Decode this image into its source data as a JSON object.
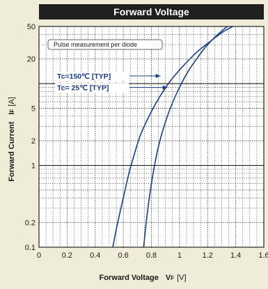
{
  "chart_data": {
    "type": "line",
    "title": "Forward Voltage",
    "xlabel": "Forward Voltage",
    "xlabel_symbol": "V",
    "xlabel_symbol_sub": "F",
    "xlabel_unit": "[V]",
    "ylabel": "Forward Current",
    "ylabel_symbol": "I",
    "ylabel_symbol_sub": "F",
    "ylabel_unit": "[A]",
    "x_scale": "linear",
    "y_scale": "log",
    "xlim": [
      0,
      1.6
    ],
    "ylim": [
      0.1,
      50
    ],
    "x_ticks": [
      0,
      0.2,
      0.4,
      0.6,
      0.8,
      1,
      1.2,
      1.4,
      1.6
    ],
    "x_tick_labels": [
      "0",
      "0.2",
      "0.4",
      "0.6",
      "0.8",
      "1",
      "1.2",
      "1.4",
      "1.6"
    ],
    "y_ticks": [
      0.1,
      0.2,
      0.5,
      1,
      2,
      5,
      10,
      20,
      50
    ],
    "y_tick_labels": [
      "0.1",
      "0.2",
      "",
      "1",
      "2",
      "5",
      "",
      "20",
      "50"
    ],
    "grid": true,
    "note": "Pulse measurement per diode",
    "series": [
      {
        "name": "Tc=150℃ [TYP]",
        "x": [
          0.525,
          0.56,
          0.6,
          0.64,
          0.68,
          0.72,
          0.78,
          0.85,
          0.93,
          1.02,
          1.12,
          1.22,
          1.31,
          1.38
        ],
        "y": [
          0.1,
          0.2,
          0.4,
          0.8,
          1.4,
          2.3,
          3.9,
          6.5,
          10.5,
          16,
          24,
          33,
          43,
          50
        ]
      },
      {
        "name": "Tc= 25℃ [TYP]",
        "x": [
          0.745,
          0.76,
          0.78,
          0.8,
          0.82,
          0.85,
          0.89,
          0.94,
          1.0,
          1.06,
          1.13,
          1.2,
          1.28,
          1.34
        ],
        "y": [
          0.1,
          0.18,
          0.35,
          0.6,
          0.95,
          1.7,
          3.0,
          5.3,
          9.0,
          14,
          21,
          30,
          41,
          50
        ]
      }
    ],
    "colors": {
      "curve": "#1a3c82",
      "grid": "#3a3a3a",
      "background": "#ffffff",
      "page": "#efedd8",
      "title_bar": "#1f1f1f"
    }
  }
}
